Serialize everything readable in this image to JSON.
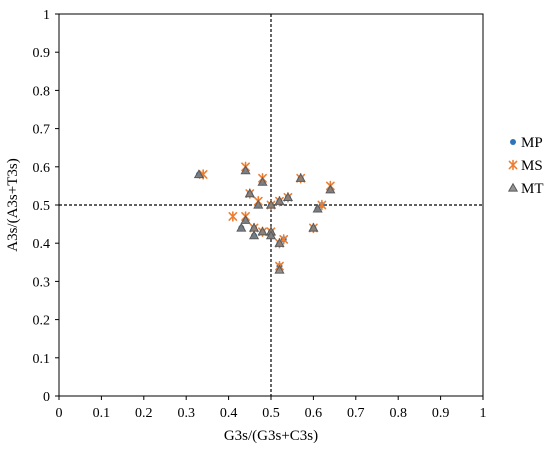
{
  "chart_data": {
    "type": "scatter",
    "xlabel": "G3s/(G3s+C3s)",
    "ylabel": "A3s/(A3s+T3s)",
    "xlim": [
      0,
      1
    ],
    "ylim": [
      0,
      1
    ],
    "xticks": [
      "0",
      "0.1",
      "0.2",
      "0.3",
      "0.4",
      "0.5",
      "0.6",
      "0.7",
      "0.8",
      "0.9",
      "1"
    ],
    "yticks": [
      "0",
      "0.1",
      "0.2",
      "0.3",
      "0.4",
      "0.5",
      "0.6",
      "0.7",
      "0.8",
      "0.9",
      "1"
    ],
    "reference_lines": {
      "x": 0.5,
      "y": 0.5,
      "style": "dashed"
    },
    "grid": false,
    "legend_position": "right",
    "series": [
      {
        "name": "MP",
        "marker": "circle",
        "color": "#2E75B6",
        "points": [
          [
            0.33,
            0.58
          ],
          [
            0.44,
            0.59
          ],
          [
            0.48,
            0.56
          ],
          [
            0.57,
            0.57
          ],
          [
            0.64,
            0.54
          ],
          [
            0.45,
            0.53
          ],
          [
            0.54,
            0.52
          ],
          [
            0.47,
            0.5
          ],
          [
            0.5,
            0.5
          ],
          [
            0.52,
            0.51
          ],
          [
            0.62,
            0.5
          ],
          [
            0.61,
            0.49
          ],
          [
            0.44,
            0.46
          ],
          [
            0.43,
            0.44
          ],
          [
            0.46,
            0.44
          ],
          [
            0.46,
            0.42
          ],
          [
            0.48,
            0.43
          ],
          [
            0.5,
            0.43
          ],
          [
            0.5,
            0.42
          ],
          [
            0.53,
            0.41
          ],
          [
            0.52,
            0.4
          ],
          [
            0.6,
            0.44
          ],
          [
            0.52,
            0.34
          ]
        ]
      },
      {
        "name": "MS",
        "marker": "star",
        "color": "#ED7D31",
        "points": [
          [
            0.34,
            0.58
          ],
          [
            0.44,
            0.6
          ],
          [
            0.48,
            0.57
          ],
          [
            0.57,
            0.57
          ],
          [
            0.64,
            0.55
          ],
          [
            0.45,
            0.53
          ],
          [
            0.54,
            0.52
          ],
          [
            0.47,
            0.51
          ],
          [
            0.5,
            0.5
          ],
          [
            0.52,
            0.51
          ],
          [
            0.62,
            0.5
          ],
          [
            0.41,
            0.47
          ],
          [
            0.44,
            0.47
          ],
          [
            0.46,
            0.44
          ],
          [
            0.48,
            0.43
          ],
          [
            0.5,
            0.43
          ],
          [
            0.53,
            0.41
          ],
          [
            0.52,
            0.4
          ],
          [
            0.6,
            0.44
          ],
          [
            0.52,
            0.34
          ]
        ]
      },
      {
        "name": "MT",
        "marker": "triangle",
        "color": "#808080",
        "points": [
          [
            0.33,
            0.58
          ],
          [
            0.44,
            0.59
          ],
          [
            0.48,
            0.56
          ],
          [
            0.57,
            0.57
          ],
          [
            0.64,
            0.54
          ],
          [
            0.45,
            0.53
          ],
          [
            0.54,
            0.52
          ],
          [
            0.47,
            0.5
          ],
          [
            0.5,
            0.5
          ],
          [
            0.52,
            0.51
          ],
          [
            0.61,
            0.49
          ],
          [
            0.44,
            0.46
          ],
          [
            0.43,
            0.44
          ],
          [
            0.46,
            0.44
          ],
          [
            0.46,
            0.42
          ],
          [
            0.48,
            0.43
          ],
          [
            0.5,
            0.43
          ],
          [
            0.5,
            0.42
          ],
          [
            0.52,
            0.4
          ],
          [
            0.6,
            0.44
          ],
          [
            0.52,
            0.33
          ]
        ]
      }
    ]
  }
}
